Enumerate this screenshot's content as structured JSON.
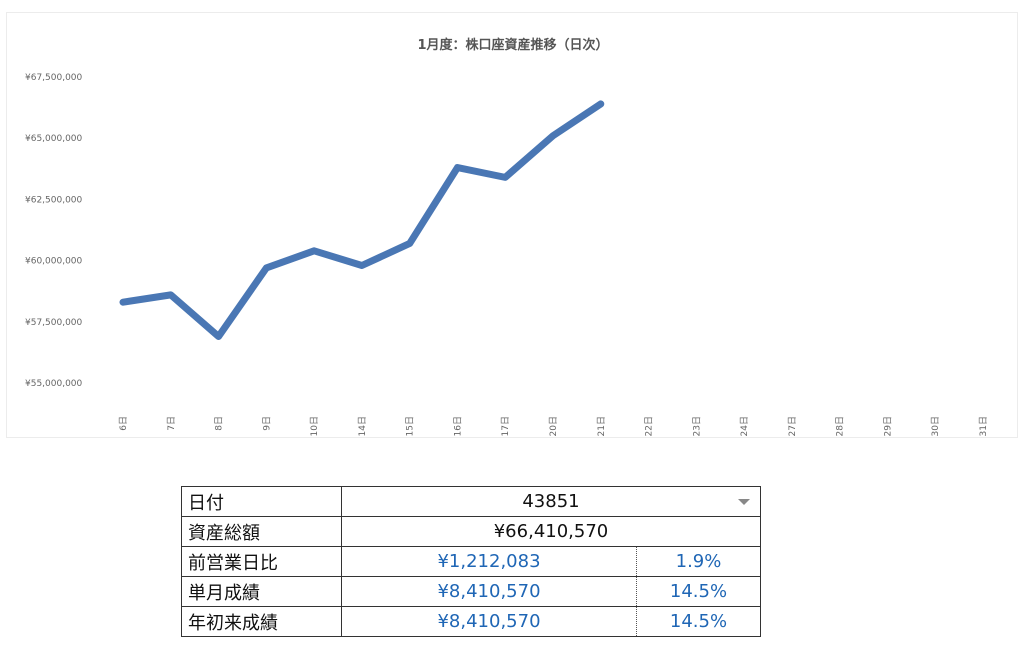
{
  "chart_data": {
    "type": "line",
    "title": "1月度：株口座資産推移（日次）",
    "categories": [
      "6日",
      "7日",
      "8日",
      "9日",
      "10日",
      "14日",
      "15日",
      "16日",
      "17日",
      "20日",
      "21日",
      "22日",
      "23日",
      "24日",
      "27日",
      "28日",
      "29日",
      "30日",
      "31日"
    ],
    "series": [
      {
        "values": [
          58300000,
          58600000,
          56900000,
          59700000,
          60400000,
          59800000,
          60700000,
          63800000,
          63400000,
          65100000,
          66400000,
          null,
          null,
          null,
          null,
          null,
          null,
          null,
          null
        ]
      }
    ],
    "ylim": [
      55000000,
      67500000
    ],
    "yticks": [
      55000000,
      57500000,
      60000000,
      62500000,
      65000000,
      67500000
    ],
    "ytick_labels": [
      "¥55,000,000",
      "¥57,500,000",
      "¥60,000,000",
      "¥62,500,000",
      "¥65,000,000",
      "¥67,500,000"
    ],
    "line_color": "#4a77b4",
    "grid": false
  },
  "summary": {
    "date_label": "日付",
    "date_value": "43851",
    "total_label": "資産総額",
    "total_value": "¥66,410,570",
    "prev_label": "前営業日比",
    "prev_amount": "¥1,212,083",
    "prev_pct": "1.9%",
    "month_label": "単月成績",
    "month_amount": "¥8,410,570",
    "month_pct": "14.5%",
    "ytd_label": "年初来成績",
    "ytd_amount": "¥8,410,570",
    "ytd_pct": "14.5%",
    "accent_color": "#1f66b5"
  }
}
